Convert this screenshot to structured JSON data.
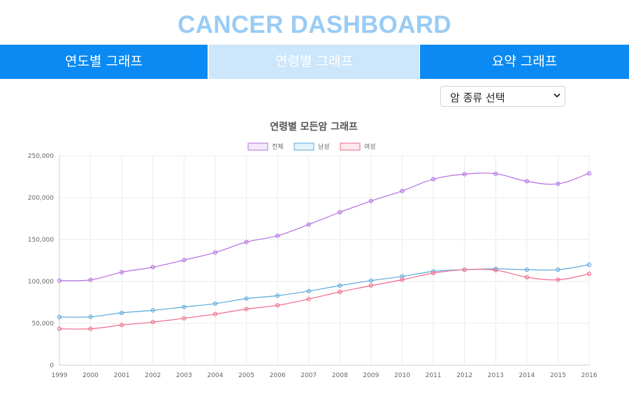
{
  "header": {
    "title": "CANCER DASHBOARD"
  },
  "tabs": [
    {
      "label": "연도별 그래프",
      "active": false
    },
    {
      "label": "연령별 그래프",
      "active": true
    },
    {
      "label": "요약 그래프",
      "active": false
    }
  ],
  "select": {
    "label": "암 종류 선택",
    "arrow_icon": "chevron-down-icon"
  },
  "colors": {
    "title": "#99ccf5",
    "tab_bg": "#0a8af2",
    "tab_active_bg": "#cce6fb",
    "series_total": "#b36ee0",
    "series_male": "#5aa9dc",
    "series_female": "#f06a8a"
  },
  "chart_data": {
    "type": "line",
    "title": "연령별 모든암 그래프",
    "xlabel": "",
    "ylabel": "",
    "x": [
      "1999",
      "2000",
      "2001",
      "2002",
      "2003",
      "2004",
      "2005",
      "2006",
      "2007",
      "2008",
      "2009",
      "2010",
      "2011",
      "2012",
      "2013",
      "2014",
      "2015",
      "2016"
    ],
    "ylim": [
      0,
      250000
    ],
    "yticks": [
      "0",
      "50,000",
      "100,000",
      "150,000",
      "200,000",
      "250,000"
    ],
    "grid": true,
    "legend": "top",
    "series": [
      {
        "name": "전체",
        "values": [
          101000,
          101800,
          111000,
          117000,
          125500,
          134500,
          147000,
          154500,
          168000,
          182500,
          196000,
          208000,
          222000,
          228000,
          228500,
          219500,
          216500,
          229000
        ]
      },
      {
        "name": "남성",
        "values": [
          57500,
          57800,
          62500,
          65500,
          69500,
          73500,
          79500,
          83000,
          88500,
          95000,
          101000,
          106000,
          112000,
          114000,
          115000,
          114000,
          114000,
          120000
        ]
      },
      {
        "name": "여성",
        "values": [
          43500,
          43500,
          48000,
          51500,
          56000,
          61000,
          67000,
          71500,
          79000,
          87500,
          95000,
          102000,
          110000,
          114000,
          113500,
          105000,
          102000,
          109000
        ]
      }
    ]
  }
}
